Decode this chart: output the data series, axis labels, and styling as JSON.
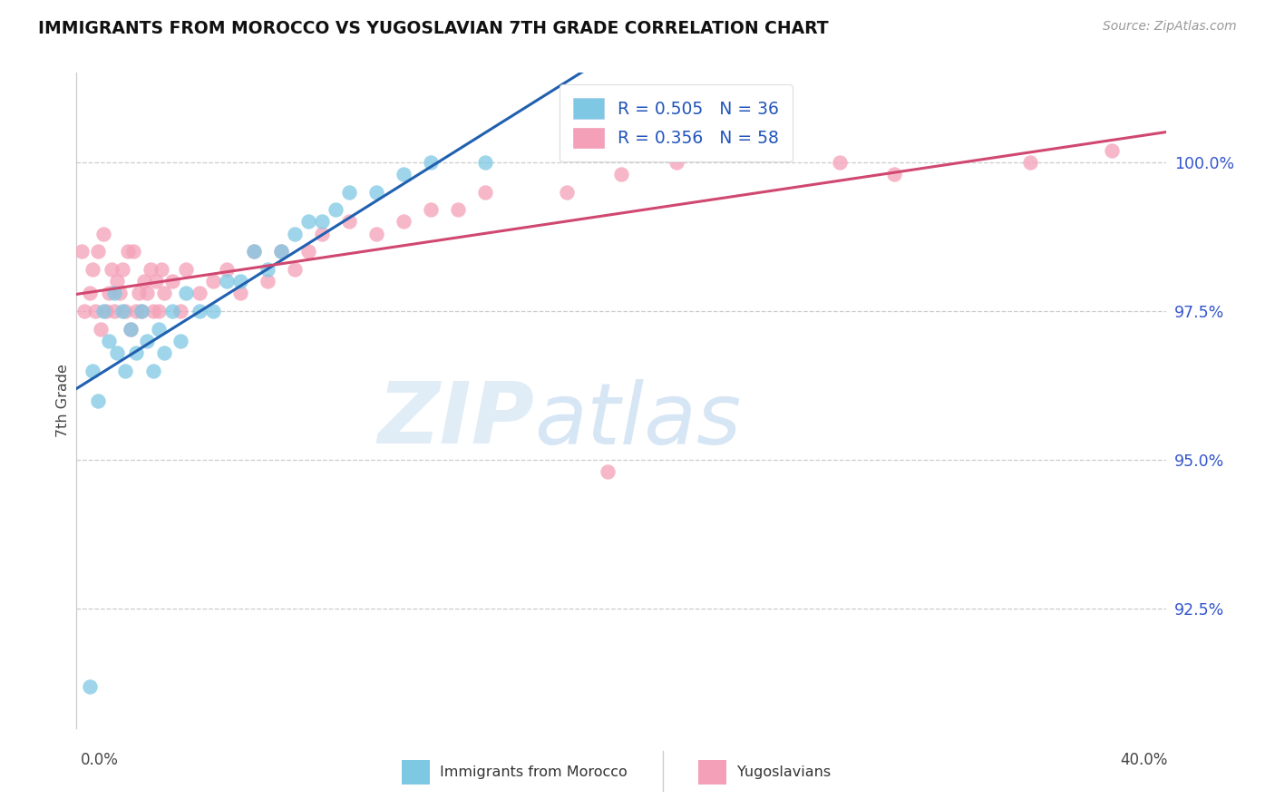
{
  "title": "IMMIGRANTS FROM MOROCCO VS YUGOSLAVIAN 7TH GRADE CORRELATION CHART",
  "source": "Source: ZipAtlas.com",
  "ylabel": "7th Grade",
  "yticks": [
    92.5,
    95.0,
    97.5,
    100.0
  ],
  "ytick_labels": [
    "92.5%",
    "95.0%",
    "97.5%",
    "100.0%"
  ],
  "xlim": [
    0.0,
    40.0
  ],
  "ylim": [
    90.5,
    101.5
  ],
  "legend_blue_text": "R = 0.505   N = 36",
  "legend_pink_text": "R = 0.356   N = 58",
  "legend_label_blue": "Immigrants from Morocco",
  "legend_label_pink": "Yugoslavians",
  "blue_color": "#7ec8e3",
  "pink_color": "#f4a0b8",
  "blue_line_color": "#2060b0",
  "pink_line_color": "#d04870",
  "blue_scatter_x": [
    0.5,
    0.6,
    0.8,
    1.0,
    1.2,
    1.4,
    1.5,
    1.7,
    1.8,
    2.0,
    2.2,
    2.4,
    2.6,
    2.8,
    3.0,
    3.2,
    3.5,
    3.8,
    4.0,
    4.5,
    5.0,
    5.5,
    6.0,
    6.5,
    7.0,
    7.5,
    8.0,
    8.5,
    9.0,
    9.5,
    10.0,
    11.0,
    12.0,
    13.0,
    15.0,
    18.0
  ],
  "blue_scatter_y": [
    91.2,
    96.5,
    96.0,
    97.5,
    97.0,
    97.8,
    96.8,
    97.5,
    96.5,
    97.2,
    96.8,
    97.5,
    97.0,
    96.5,
    97.2,
    96.8,
    97.5,
    97.0,
    97.8,
    97.5,
    97.5,
    98.0,
    98.0,
    98.5,
    98.2,
    98.5,
    98.8,
    99.0,
    99.0,
    99.2,
    99.5,
    99.5,
    99.8,
    100.0,
    100.0,
    100.2
  ],
  "pink_scatter_x": [
    0.2,
    0.3,
    0.5,
    0.6,
    0.7,
    0.8,
    0.9,
    1.0,
    1.1,
    1.2,
    1.3,
    1.4,
    1.5,
    1.6,
    1.7,
    1.8,
    1.9,
    2.0,
    2.1,
    2.2,
    2.3,
    2.4,
    2.5,
    2.6,
    2.7,
    2.8,
    2.9,
    3.0,
    3.1,
    3.2,
    3.5,
    3.8,
    4.0,
    4.5,
    5.0,
    5.5,
    6.0,
    6.5,
    7.0,
    7.5,
    8.0,
    8.5,
    9.0,
    10.0,
    11.0,
    12.0,
    13.0,
    14.0,
    15.0,
    18.0,
    20.0,
    22.0,
    25.0,
    28.0,
    30.0,
    35.0,
    38.0,
    19.5
  ],
  "pink_scatter_y": [
    98.5,
    97.5,
    97.8,
    98.2,
    97.5,
    98.5,
    97.2,
    98.8,
    97.5,
    97.8,
    98.2,
    97.5,
    98.0,
    97.8,
    98.2,
    97.5,
    98.5,
    97.2,
    98.5,
    97.5,
    97.8,
    97.5,
    98.0,
    97.8,
    98.2,
    97.5,
    98.0,
    97.5,
    98.2,
    97.8,
    98.0,
    97.5,
    98.2,
    97.8,
    98.0,
    98.2,
    97.8,
    98.5,
    98.0,
    98.5,
    98.2,
    98.5,
    98.8,
    99.0,
    98.8,
    99.0,
    99.2,
    99.2,
    99.5,
    99.5,
    99.8,
    100.0,
    100.2,
    100.0,
    99.8,
    100.0,
    100.2,
    94.8
  ]
}
